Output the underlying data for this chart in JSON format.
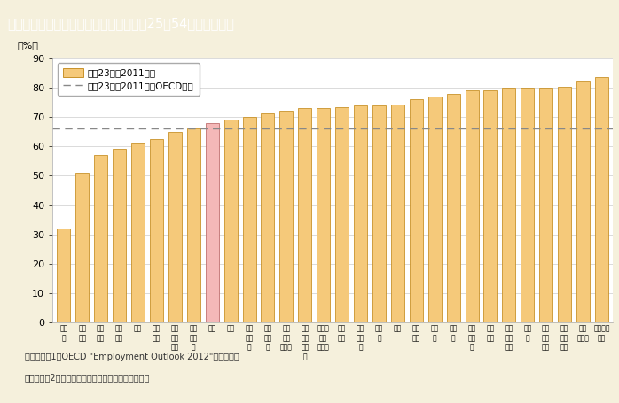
{
  "title": "第１－２－２図　ＯＥＣＤ諸国の女性（25～54歳）の就業率",
  "ylabel": "（%）",
  "ylim": [
    0,
    90
  ],
  "yticks": [
    0,
    10,
    20,
    30,
    40,
    50,
    60,
    70,
    80,
    90
  ],
  "oecd_avg": 66.0,
  "categories": [
    "トル\nコ",
    "メキ\nシコ",
    "ギリ\nシャ",
    "イタ\nリア",
    "韓国",
    "スペ\nイン",
    "アイ\nルラ\nンド",
    "ハン\nガリ\nー",
    "日本",
    "米国",
    "スロ\nバキ\nア",
    "ポー\nラン\nド",
    "オー\nスト\nラリア",
    "ルク\nセン\nブル\nク",
    "ニュー\nジー\nランド",
    "ベル\nギー",
    "ポル\nトガ\nル",
    "チェ\nコ",
    "英国",
    "フラ\nンス",
    "カナ\nダ",
    "ドイ\nツ",
    "デン\nマー\nク",
    "オラ\nンダ",
    "フィ\nンラ\nンド",
    "スイ\nス",
    "オー\nスト\nリア",
    "アイ\nスラ\nンド",
    "ノル\nウェー",
    "スウェー\nデン"
  ],
  "values": [
    32.0,
    51.0,
    57.2,
    59.2,
    61.0,
    62.6,
    65.0,
    66.2,
    68.0,
    69.1,
    70.0,
    71.2,
    72.1,
    73.0,
    73.1,
    73.5,
    74.0,
    74.1,
    74.2,
    76.0,
    77.0,
    78.0,
    79.0,
    79.1,
    79.9,
    80.0,
    80.1,
    80.2,
    82.0,
    83.5
  ],
  "bar_color": "#F5C97A",
  "bar_edge_color": "#C8922A",
  "highlight_index": 8,
  "highlight_color": "#F4B8B8",
  "highlight_edge_color": "#C07070",
  "oecd_line_color": "#888888",
  "background_color": "#F5F0DC",
  "plot_bg_color": "#FFFFFF",
  "legend_label_bar": "平成23年（2011年）",
  "legend_label_line": "平成23年（2011年）OECD平均",
  "note1": "（備考）　1．OECD \"Employment Outlook 2012\"より作成。",
  "note2": "　　　　　2．就業率は「就業者数／人口」で計算。",
  "title_bg_color": "#8B7355",
  "title_text_color": "#FFFFFF",
  "title_fontsize": 10.5
}
